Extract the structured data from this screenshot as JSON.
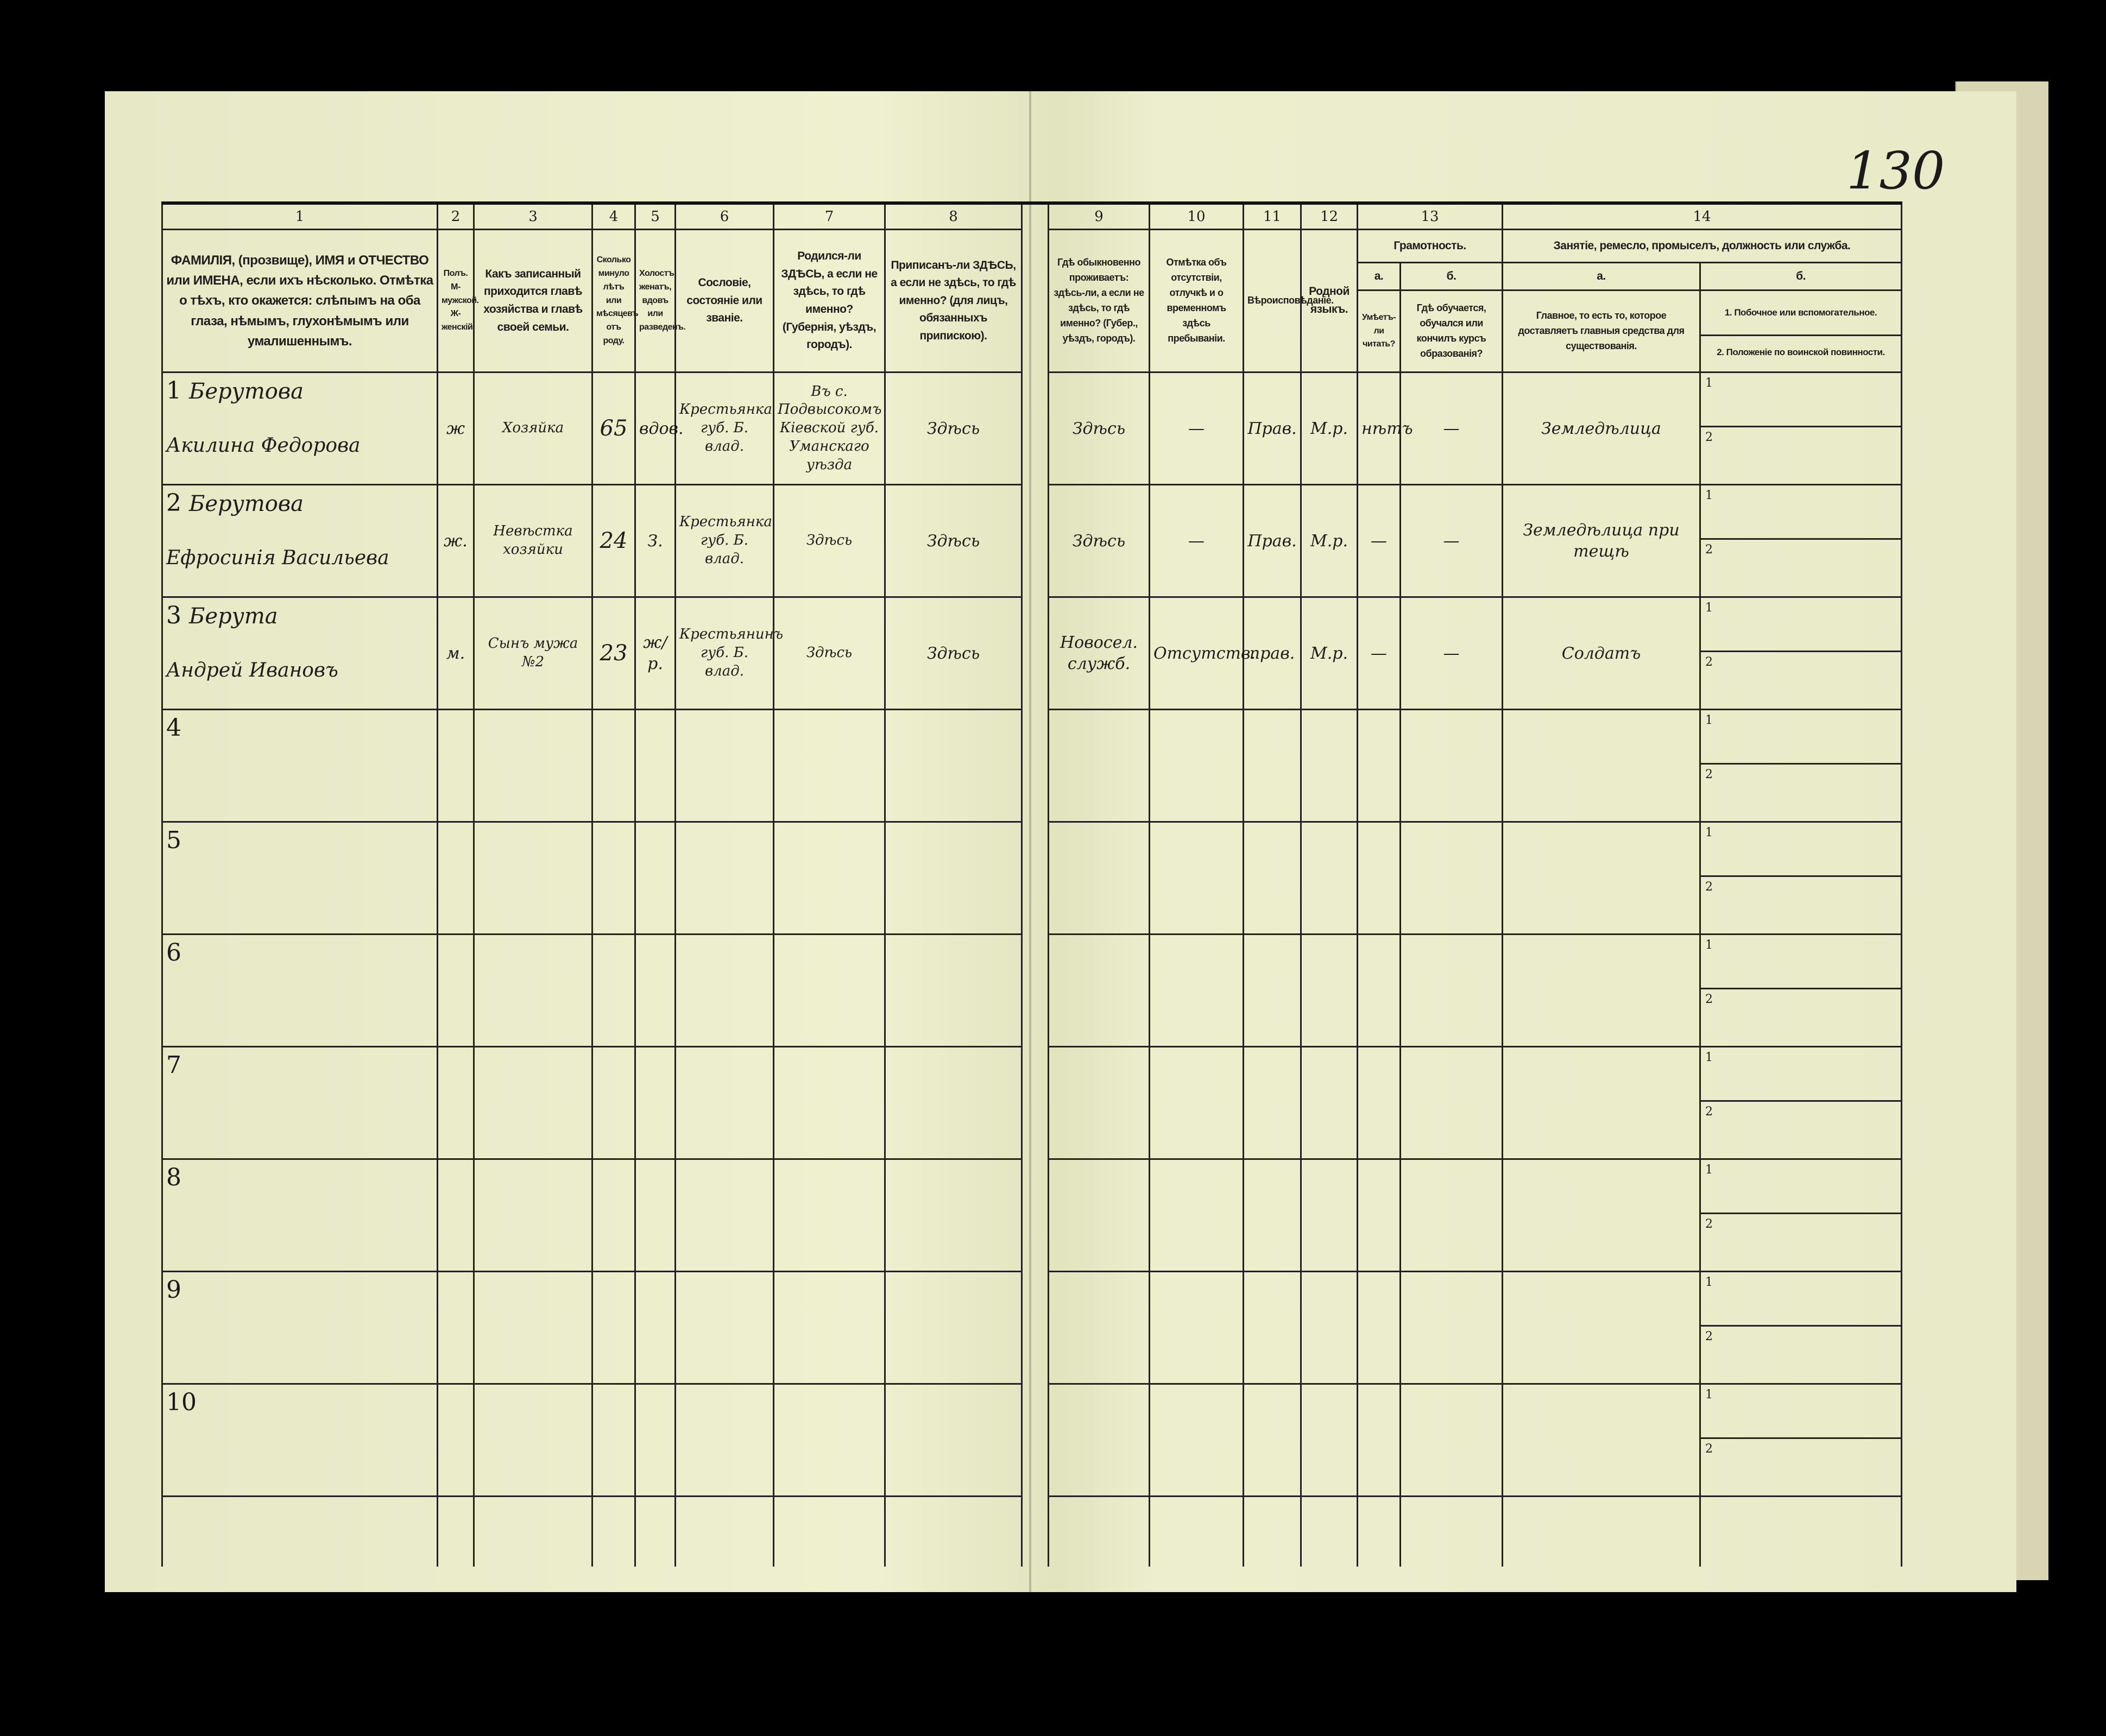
{
  "page_number": "130",
  "column_numbers": [
    "1",
    "2",
    "3",
    "4",
    "5",
    "6",
    "7",
    "8",
    "9",
    "10",
    "11",
    "12",
    "13",
    "14"
  ],
  "headers": {
    "c1": "ФАМИЛІЯ, (прозвище), ИМЯ и ОТЧЕСТВО или ИМЕНА, если ихъ нѣсколько. Отмѣтка о тѣхъ, кто окажется: слѣпымъ на оба глаза, нѣмымъ, глухонѣмымъ или умалишеннымъ.",
    "c2": "Полъ. М-мужской. Ж-женскій.",
    "c3": "Какъ записанный приходится главѣ хозяйства и главѣ своей семьи.",
    "c4": "Сколько минуло лѣтъ или мѣсяцевъ отъ роду.",
    "c5": "Холостъ, женатъ, вдовъ или разведенъ.",
    "c6": "Сословіе, состояніе или званіе.",
    "c7": "Родился-ли ЗДѢСЬ, а если не здѣсь, то гдѣ именно? (Губернія, уѣздъ, городъ).",
    "c8": "Приписанъ-ли ЗДѢСЬ, а если не здѣсь, то гдѣ именно? (для лицъ, обязанныхъ припискою).",
    "c9": "Гдѣ обыкновенно проживаетъ: здѣсь-ли, а если не здѣсь, то гдѣ именно? (Губер., уѣздъ, городъ).",
    "c10": "Отмѣтка объ отсутствіи, отлучкѣ и о временномъ здѣсь пребываніи.",
    "c11": "Вѣроисповѣданіе.",
    "c12": "Родной языкъ.",
    "c13": "Грамотность.",
    "c13a_letter": "а.",
    "c13b_letter": "б.",
    "c13a": "Умѣетъ-ли читать?",
    "c13b": "Гдѣ обучается, обучался или кончилъ курсъ образованія?",
    "c14": "Занятіе, ремесло, промыселъ, должность или служба.",
    "c14a_letter": "а.",
    "c14b_letter": "б.",
    "c14a": "Главное, то есть то, которое доставляетъ главныя средства для существованія.",
    "c14b_1": "1. Побочное или вспомогательное.",
    "c14b_2": "2. Положеніе по воинской повинности."
  },
  "sub_labels": [
    "1",
    "2"
  ],
  "rows": [
    {
      "num": "1",
      "surname": "Берутова",
      "given": "Акилина Федорова",
      "sex": "ж",
      "relation": "Хозяйка",
      "age": "65",
      "marital": "вдов.",
      "estate": "Крестьянка губ. Б. влад.",
      "birthplace": "Въ с. Подвысокомъ Кіевской губ. Уманскаго уѣзда",
      "registered": "Здѣсь",
      "residence": "Здѣсь",
      "absence": "—",
      "religion": "Прав.",
      "language": "М.р.",
      "literate": "нѣтъ",
      "education": "—",
      "occupation": "Земледѣлица",
      "side": "",
      "military": ""
    },
    {
      "num": "2",
      "surname": "Берутова",
      "given": "Ефросинія Васильева",
      "sex": "ж.",
      "relation": "Невѣстка хозяйки",
      "age": "24",
      "marital": "З.",
      "estate": "Крестьянка губ. Б. влад.",
      "birthplace": "Здѣсь",
      "registered": "Здѣсь",
      "residence": "Здѣсь",
      "absence": "—",
      "religion": "Прав.",
      "language": "М.р.",
      "literate": "—",
      "education": "—",
      "occupation": "Земледѣлица при тещѣ",
      "side": "",
      "military": ""
    },
    {
      "num": "3",
      "surname": "Берута",
      "given": "Андрей Ивановъ",
      "sex": "м.",
      "relation": "Сынъ мужа №2",
      "age": "23",
      "marital": "ж/р.",
      "estate": "Крестьянинъ губ. Б. влад.",
      "birthplace": "Здѣсь",
      "registered": "Здѣсь",
      "residence": "Новосел. служб.",
      "absence": "Отсутств.",
      "religion": "прав.",
      "language": "М.р.",
      "literate": "—",
      "education": "—",
      "occupation": "Солдатъ",
      "side": "",
      "military": ""
    },
    {
      "num": "4"
    },
    {
      "num": "5"
    },
    {
      "num": "6"
    },
    {
      "num": "7"
    },
    {
      "num": "8"
    },
    {
      "num": "9"
    },
    {
      "num": "10"
    }
  ]
}
